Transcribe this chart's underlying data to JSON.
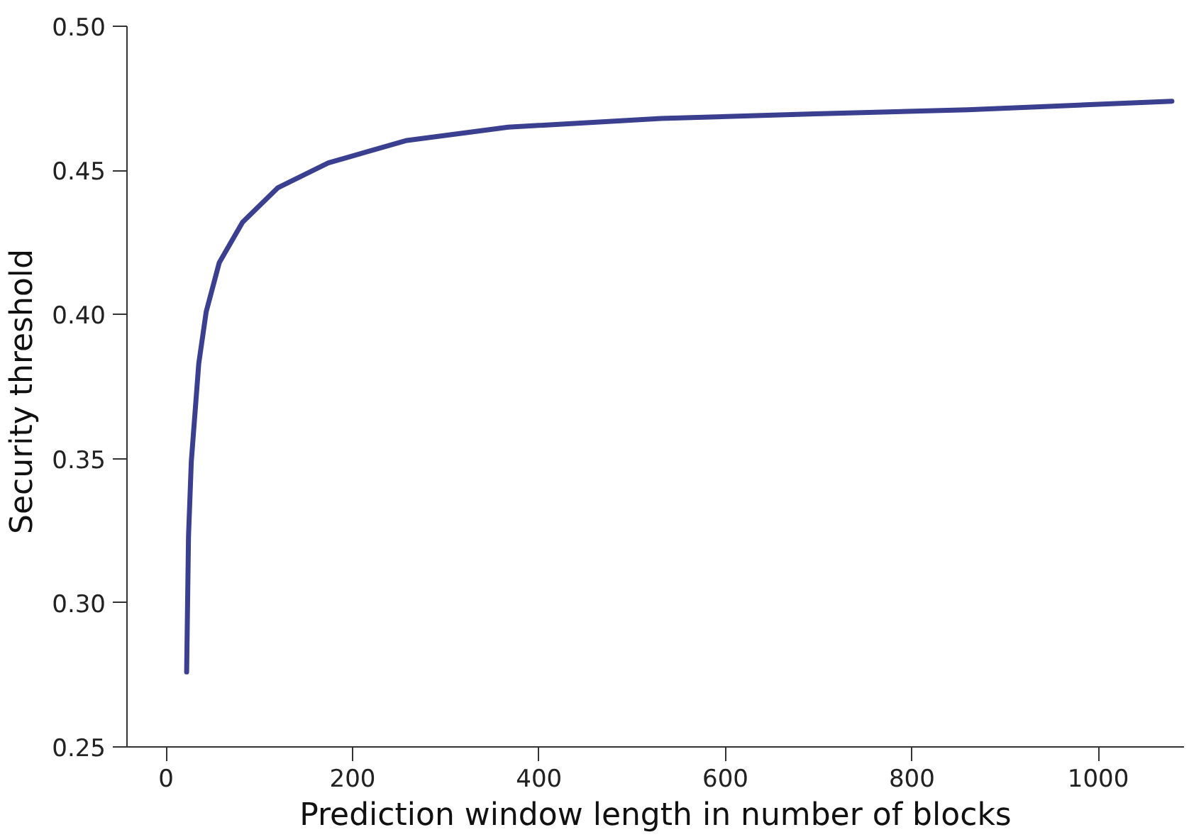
{
  "chart_data": {
    "type": "line",
    "xlabel": "Prediction window length in number of blocks",
    "ylabel": "Security  threshold",
    "series": [
      {
        "color": "#3a3f8f",
        "x": [
          22,
          24,
          27,
          35,
          43,
          57,
          82,
          120,
          174,
          257,
          367,
          531,
          696,
          860,
          1079
        ],
        "values": [
          0.276,
          0.323,
          0.349,
          0.383,
          0.401,
          0.418,
          0.432,
          0.444,
          0.4526,
          0.4603,
          0.465,
          0.468,
          0.4696,
          0.471,
          0.474
        ]
      }
    ],
    "xlim": [
      -42,
      1092
    ],
    "ylim": [
      0.25,
      0.5
    ],
    "xticks": [
      0,
      200,
      400,
      600,
      800,
      1000
    ],
    "yticks": [
      {
        "value": 0.25,
        "label": "0.25"
      },
      {
        "value": 0.3,
        "label": "0.30"
      },
      {
        "value": 0.35,
        "label": "0.35"
      },
      {
        "value": 0.4,
        "label": "0.40"
      },
      {
        "value": 0.45,
        "label": "0.45"
      },
      {
        "value": 0.5,
        "label": "0.50"
      }
    ],
    "grid": false,
    "marker": "none",
    "line_style": "solid"
  }
}
